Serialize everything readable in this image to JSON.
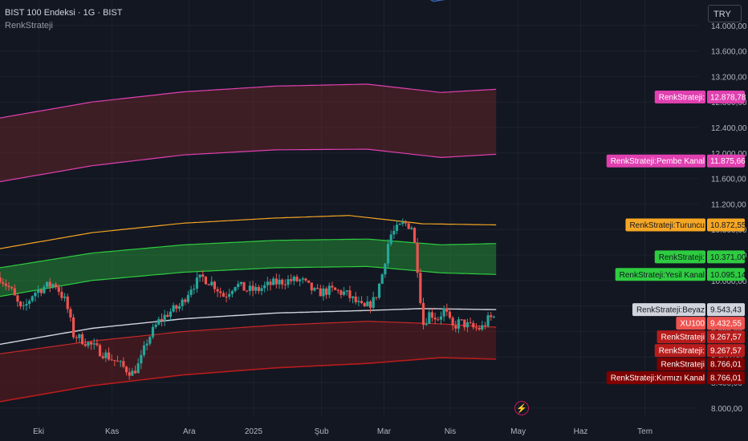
{
  "header": {
    "symbol_line": "BIST 100 Endeksi · 1G · BIST",
    "indicator_name": "RenkStrateji"
  },
  "currency": "TRY",
  "colors": {
    "background": "#131722",
    "up": "#26a69a",
    "down": "#ef5350",
    "pink": "#e040b0",
    "orange": "#f5a623",
    "green": "#2ecc40",
    "red": "#c62828",
    "white": "#d1d4dc",
    "blue": "#3f72c8"
  },
  "chart_data": {
    "type": "candlestick",
    "y_ticks": [
      "14.000,00",
      "13.600,00",
      "13.200,00",
      "12.800,00",
      "12.400,00",
      "12.000,00",
      "11.600,00",
      "11.200,00",
      "10.800,00",
      "10.400,00",
      "10.000,00",
      "9.600,00",
      "9.200,00",
      "8.800,00",
      "8.400,00",
      "8.000,00"
    ],
    "y_tick_values": [
      14000,
      13600,
      13200,
      12800,
      12400,
      12000,
      11600,
      11200,
      10800,
      10400,
      10000,
      9600,
      9200,
      8800,
      8400,
      8000
    ],
    "ylim": [
      7860,
      14400
    ],
    "x_ticks": [
      "Eki",
      "Kas",
      "Ara",
      "2025",
      "Şub",
      "Mar",
      "Nis",
      "May",
      "Haz",
      "Tem"
    ],
    "x_tick_days": [
      21,
      61,
      103,
      138,
      175,
      209,
      245,
      282,
      316,
      351
    ],
    "day_range": [
      0,
      380
    ],
    "data_end_day": 270,
    "bands": {
      "pink_upper": [
        [
          0,
          12550
        ],
        [
          50,
          12800
        ],
        [
          100,
          12960
        ],
        [
          150,
          13050
        ],
        [
          200,
          13080
        ],
        [
          240,
          12950
        ],
        [
          270,
          13000
        ]
      ],
      "pink_lower": [
        [
          0,
          11550
        ],
        [
          50,
          11800
        ],
        [
          100,
          11970
        ],
        [
          150,
          12050
        ],
        [
          200,
          12060
        ],
        [
          240,
          11930
        ],
        [
          270,
          11980
        ]
      ],
      "orange": [
        [
          0,
          10500
        ],
        [
          50,
          10750
        ],
        [
          100,
          10900
        ],
        [
          150,
          10980
        ],
        [
          190,
          11020
        ],
        [
          230,
          10890
        ],
        [
          270,
          10872.55
        ]
      ],
      "green_upper": [
        [
          0,
          10200
        ],
        [
          50,
          10430
        ],
        [
          100,
          10560
        ],
        [
          150,
          10630
        ],
        [
          200,
          10650
        ],
        [
          240,
          10560
        ],
        [
          270,
          10580
        ]
      ],
      "green_lower": [
        [
          0,
          9750
        ],
        [
          50,
          10000
        ],
        [
          100,
          10130
        ],
        [
          150,
          10200
        ],
        [
          200,
          10220
        ],
        [
          240,
          10120
        ],
        [
          270,
          10095.14
        ]
      ],
      "white": [
        [
          0,
          9000
        ],
        [
          50,
          9250
        ],
        [
          100,
          9400
        ],
        [
          150,
          9490
        ],
        [
          200,
          9530
        ],
        [
          230,
          9560
        ],
        [
          270,
          9543.43
        ]
      ],
      "red_upper": [
        [
          0,
          8850
        ],
        [
          50,
          9050
        ],
        [
          100,
          9200
        ],
        [
          150,
          9300
        ],
        [
          200,
          9360
        ],
        [
          240,
          9320
        ],
        [
          270,
          9267.57
        ]
      ],
      "red_lower": [
        [
          0,
          8100
        ],
        [
          50,
          8350
        ],
        [
          100,
          8520
        ],
        [
          150,
          8630
        ],
        [
          200,
          8700
        ],
        [
          240,
          8790
        ],
        [
          270,
          8766.01
        ]
      ],
      "blue_top": [
        [
          228,
          14500
        ],
        [
          236,
          14380
        ],
        [
          252,
          14450
        ]
      ]
    },
    "candle_path": [
      [
        0,
        10050
      ],
      [
        6,
        9850
      ],
      [
        12,
        9500
      ],
      [
        18,
        9800
      ],
      [
        24,
        9900
      ],
      [
        30,
        9950
      ],
      [
        36,
        9650
      ],
      [
        40,
        9150
      ],
      [
        46,
        9050
      ],
      [
        54,
        8900
      ],
      [
        62,
        8750
      ],
      [
        68,
        8620
      ],
      [
        72,
        8550
      ],
      [
        76,
        8700
      ],
      [
        80,
        9050
      ],
      [
        86,
        9350
      ],
      [
        92,
        9500
      ],
      [
        98,
        9600
      ],
      [
        104,
        9900
      ],
      [
        110,
        10050
      ],
      [
        116,
        9950
      ],
      [
        122,
        9750
      ],
      [
        128,
        9950
      ],
      [
        134,
        9850
      ],
      [
        140,
        9850
      ],
      [
        148,
        9950
      ],
      [
        156,
        10000
      ],
      [
        164,
        10000
      ],
      [
        172,
        9800
      ],
      [
        180,
        9850
      ],
      [
        188,
        9800
      ],
      [
        194,
        9650
      ],
      [
        198,
        9550
      ],
      [
        204,
        9700
      ],
      [
        208,
        10100
      ],
      [
        212,
        10700
      ],
      [
        216,
        10800
      ],
      [
        220,
        10900
      ],
      [
        224,
        10850
      ],
      [
        226,
        10500
      ],
      [
        228,
        10000
      ],
      [
        230,
        9300
      ],
      [
        234,
        9500
      ],
      [
        238,
        9400
      ],
      [
        242,
        9550
      ],
      [
        246,
        9250
      ],
      [
        250,
        9350
      ],
      [
        254,
        9300
      ],
      [
        258,
        9250
      ],
      [
        262,
        9250
      ],
      [
        266,
        9400
      ],
      [
        270,
        9432.55
      ]
    ],
    "series": [
      {
        "name": "RenkStrateji:",
        "value": "12.878,78",
        "color": "#e040b0",
        "text": "#ffffff",
        "y": 12878.78
      },
      {
        "name": "RenkStrateji:Pembe Kanal",
        "value": "11.875,66",
        "color": "#e040b0",
        "text": "#ffffff",
        "y": 11875.66
      },
      {
        "name": "RenkStrateji:Turuncu",
        "value": "10.872,55",
        "color": "#f5a623",
        "text": "#131722",
        "y": 10872.55
      },
      {
        "name": "RenkStrateji:",
        "value": "10.371,00",
        "color": "#2ecc40",
        "text": "#131722",
        "y": 10371.0
      },
      {
        "name": "RenkStrateji:Yesil Kanal",
        "value": "10.095,14",
        "color": "#2ecc40",
        "text": "#131722",
        "y": 10095.14
      },
      {
        "name": "RenkStrateji:Beyaz",
        "value": "9.543,43",
        "color": "#d1d4dc",
        "text": "#131722",
        "y": 9543.43
      },
      {
        "name": "XU100",
        "value": "9.432,55",
        "color": "#ef5350",
        "text": "#ffffff",
        "y": 9432.55
      },
      {
        "name": "RenkStrateji",
        "value": "9.267,57",
        "color": "#b71c1c",
        "text": "#ffffff",
        "y": 9267.57
      },
      {
        "name": "RenkStrateji:",
        "value": "9.267,57",
        "color": "#b71c1c",
        "text": "#ffffff",
        "y": 9267.57
      },
      {
        "name": "RenkStrateji",
        "value": "8.766,01",
        "color": "#7f0000",
        "text": "#ffffff",
        "y": 8766.01
      },
      {
        "name": "RenkStrateji:Kırmızı Kanal",
        "value": "8.766,01",
        "color": "#7f0000",
        "text": "#ffffff",
        "y": 8766.01
      }
    ]
  }
}
